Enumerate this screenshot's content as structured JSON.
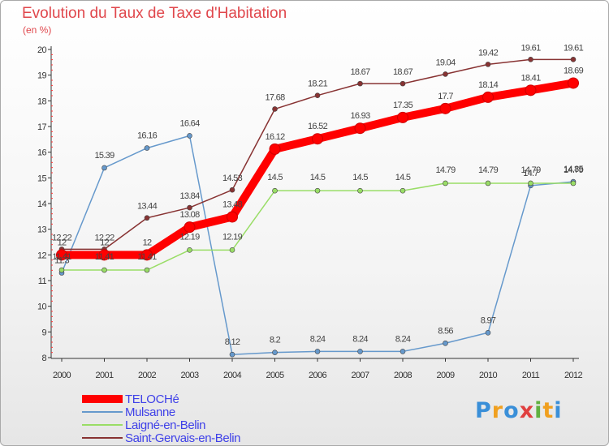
{
  "chart_data": {
    "type": "line",
    "title": "Evolution du Taux de Taxe d'Habitation",
    "subtitle": "(en %)",
    "xlabel": "",
    "ylabel": "",
    "x": [
      "2000",
      "2001",
      "2002",
      "2003",
      "2004",
      "2005",
      "2006",
      "2007",
      "2008",
      "2009",
      "2010",
      "2011",
      "2012"
    ],
    "ylim": [
      8,
      20
    ],
    "yticks": [
      "8",
      "9",
      "10",
      "11",
      "12",
      "13",
      "14",
      "15",
      "16",
      "17",
      "18",
      "19",
      "20"
    ],
    "grid": false,
    "legend_position": "bottom-left",
    "series": [
      {
        "name": "TELOCHé",
        "color": "#ff0000",
        "values": [
          12,
          12,
          12,
          13.08,
          13.48,
          16.12,
          16.52,
          16.93,
          17.35,
          17.7,
          18.14,
          18.41,
          18.69
        ],
        "labels": [
          "12",
          "12",
          "12",
          "13.08",
          "13.48",
          "16.12",
          "16.52",
          "16.93",
          "17.35",
          "17.7",
          "18.14",
          "18.41",
          "18.69"
        ]
      },
      {
        "name": "Mulsanne",
        "color": "#6699cc",
        "values": [
          11.3,
          15.39,
          16.16,
          16.64,
          8.12,
          8.2,
          8.24,
          8.24,
          8.24,
          8.56,
          8.97,
          14.7,
          14.85
        ],
        "labels": [
          "11.3",
          "15.39",
          "16.16",
          "16.64",
          "8.12",
          "8.2",
          "8.24",
          "8.24",
          "8.24",
          "8.56",
          "8.97",
          "14.7",
          "14.85"
        ]
      },
      {
        "name": "Laigné-en-Belin",
        "color": "#99dd66",
        "values": [
          11.41,
          11.41,
          11.41,
          12.19,
          12.19,
          14.5,
          14.5,
          14.5,
          14.5,
          14.79,
          14.79,
          14.79,
          14.79
        ],
        "labels": [
          "11.41",
          "11.41",
          "11.41",
          "12.19",
          "12.19",
          "14.5",
          "14.5",
          "14.5",
          "14.5",
          "14.79",
          "14.79",
          "14.79",
          "14.79"
        ]
      },
      {
        "name": "Saint-Gervais-en-Belin",
        "color": "#883333",
        "values": [
          12.22,
          12.22,
          13.44,
          13.84,
          14.53,
          17.68,
          18.21,
          18.67,
          18.67,
          19.04,
          19.42,
          19.61,
          19.61
        ],
        "labels": [
          "12.22",
          "12.22",
          "13.44",
          "13.84",
          "14.53",
          "17.68",
          "18.21",
          "18.67",
          "18.67",
          "19.04",
          "19.42",
          "19.61",
          "19.61"
        ]
      }
    ]
  },
  "brand": {
    "letters": [
      "P",
      "r",
      "o",
      "x",
      "i",
      "t",
      "i"
    ],
    "colors": [
      "#3a8fd8",
      "#f0a020",
      "#3a8fd8",
      "#e04040",
      "#60b040",
      "#f0a020",
      "#3a8fd8"
    ]
  }
}
